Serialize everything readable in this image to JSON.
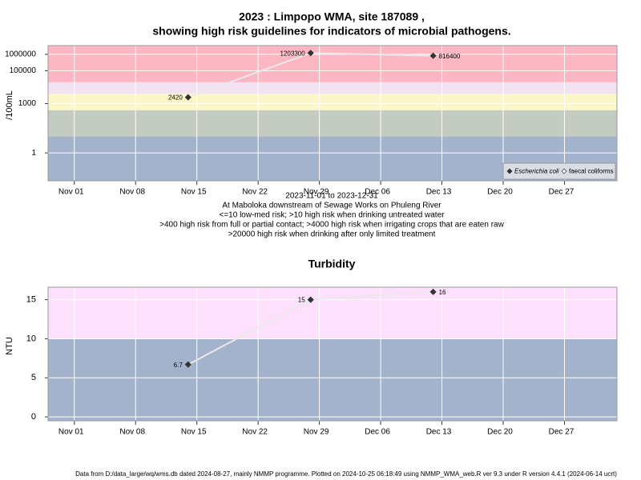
{
  "chart_data": [
    {
      "type": "line",
      "title": [
        "2023 : Limpopo WMA, site 187089 ,",
        "showing high risk guidelines for indicators of microbial pathogens."
      ],
      "y_label": "/100mL",
      "log_y": true,
      "ylim": [
        0.02,
        3400000
      ],
      "yticks": [
        1,
        1000,
        100000,
        1000000
      ],
      "xlim": [
        "2023-10-29",
        "2024-01-02"
      ],
      "xticks": [
        {
          "value": "2023-11-01",
          "label": "Nov 01"
        },
        {
          "value": "2023-11-08",
          "label": "Nov 08"
        },
        {
          "value": "2023-11-15",
          "label": "Nov 15"
        },
        {
          "value": "2023-11-22",
          "label": "Nov 22"
        },
        {
          "value": "2023-11-29",
          "label": "Nov 29"
        },
        {
          "value": "2023-12-06",
          "label": "Dec 06"
        },
        {
          "value": "2023-12-13",
          "label": "Dec 13"
        },
        {
          "value": "2023-12-20",
          "label": "Dec 20"
        },
        {
          "value": "2023-12-27",
          "label": "Dec 27"
        }
      ],
      "x": [
        "2023-11-14",
        "2023-11-28",
        "2023-12-12"
      ],
      "series": [
        {
          "name": "Escherichia coli",
          "color": "#333333",
          "values": [
            2420,
            1203300,
            816400
          ]
        },
        {
          "name": "faecal coliforms",
          "color": "#ffffff",
          "values": [
            null,
            null,
            null
          ]
        }
      ],
      "line_color": "#e9e9e9",
      "bands": {
        "breaks": [
          10,
          400,
          4000,
          20000
        ],
        "colors": [
          "#a3b3cc",
          "#c4cbc0",
          "#fbf7c8",
          "#f3e2f2",
          "#fdb7c3"
        ]
      },
      "grid": true,
      "legend": "bottom right",
      "notes": [
        "2023-11-01 to 2023-12-31",
        "At Maboloka downstream of Sewage Works on Phuleng River",
        "<=10 low-med risk; >10 high risk when drinking untreated water",
        ">400 high risk from full or partial contact; >4000 high risk when irrigating crops that are eaten raw",
        ">20000 high risk when drinking after only limited treatment"
      ]
    },
    {
      "type": "line",
      "title": [
        "Turbidity"
      ],
      "y_label": "NTU",
      "log_y": false,
      "ylim": [
        -0.5,
        16.6
      ],
      "yticks": [
        0,
        5,
        10,
        15
      ],
      "xlim": [
        "2023-10-29",
        "2024-01-02"
      ],
      "xticks": [
        {
          "value": "2023-11-01",
          "label": "Nov 01"
        },
        {
          "value": "2023-11-08",
          "label": "Nov 08"
        },
        {
          "value": "2023-11-15",
          "label": "Nov 15"
        },
        {
          "value": "2023-11-22",
          "label": "Nov 22"
        },
        {
          "value": "2023-11-29",
          "label": "Nov 29"
        },
        {
          "value": "2023-12-06",
          "label": "Dec 06"
        },
        {
          "value": "2023-12-13",
          "label": "Dec 13"
        },
        {
          "value": "2023-12-20",
          "label": "Dec 20"
        },
        {
          "value": "2023-12-27",
          "label": "Dec 27"
        }
      ],
      "x": [
        "2023-11-14",
        "2023-11-28",
        "2023-12-12"
      ],
      "series": [
        {
          "name": "Turbidity",
          "color": "#333333",
          "values": [
            6.7,
            15,
            16
          ]
        }
      ],
      "line_color": "#e9e9e9",
      "bands": {
        "breaks": [
          10
        ],
        "colors": [
          "#a3b3cc",
          "#fde0fb"
        ]
      },
      "grid": true
    }
  ],
  "footer": "Data from D:/data_large/wq/wms.db dated 2024-08-27, mainly NMMP programme. Plotted on 2024-10-25 06:18:49 using NMMP_WMA_web.R ver 9.3 under R version 4.4.1 (2024-06-14 ucrt)"
}
